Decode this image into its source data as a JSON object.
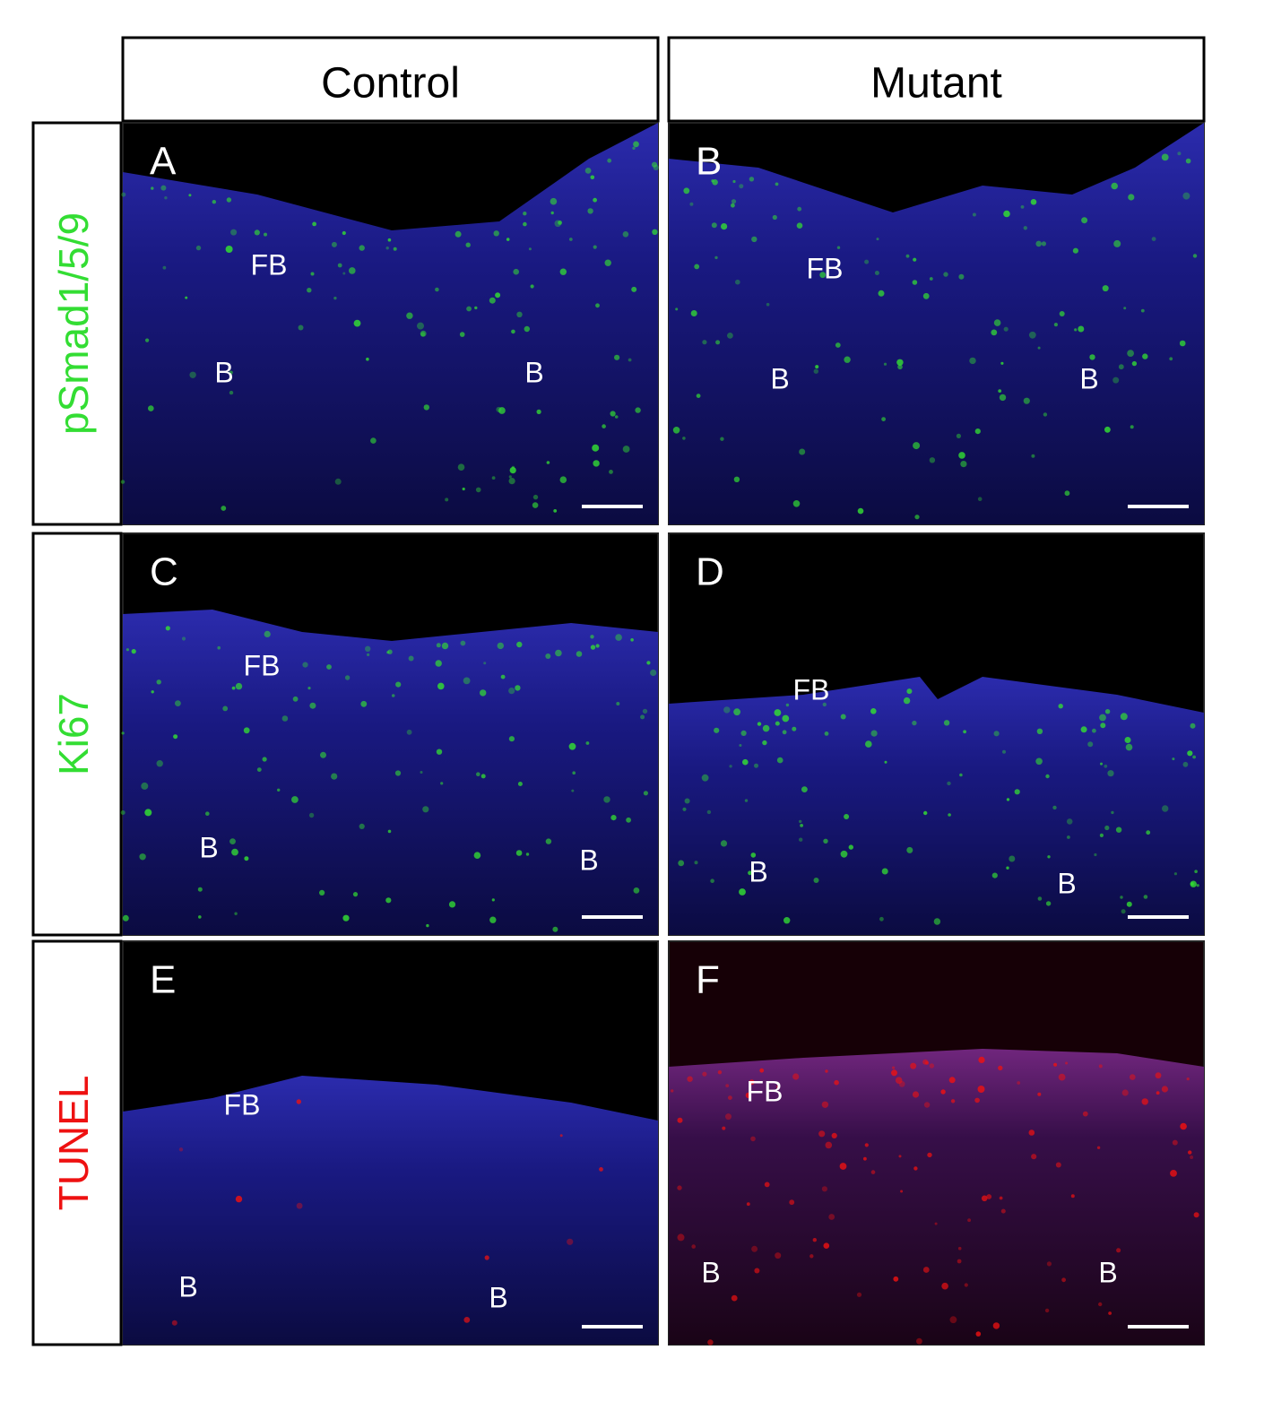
{
  "columns": [
    {
      "title": "Control"
    },
    {
      "title": "Mutant"
    }
  ],
  "rows": [
    {
      "label": "pSmad1/5/9",
      "color": "#33dd33",
      "panels": [
        {
          "letter": "A",
          "labels": [
            "FB",
            "B",
            "B"
          ]
        },
        {
          "letter": "B",
          "labels": [
            "FB",
            "B",
            "B"
          ]
        }
      ]
    },
    {
      "label": "Ki67",
      "color": "#33dd33",
      "panels": [
        {
          "letter": "C",
          "labels": [
            "FB",
            "B",
            "B"
          ]
        },
        {
          "letter": "D",
          "labels": [
            "FB",
            "B",
            "B"
          ]
        }
      ]
    },
    {
      "label": "TUNEL",
      "color": "#ee1111",
      "panels": [
        {
          "letter": "E",
          "labels": [
            "FB",
            "B",
            "B"
          ]
        },
        {
          "letter": "F",
          "labels": [
            "FB",
            "B",
            "B"
          ]
        }
      ]
    }
  ]
}
